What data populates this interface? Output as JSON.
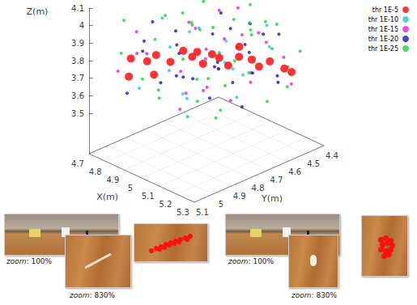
{
  "chart_data": {
    "type": "scatter",
    "xlabel": "X(m)",
    "ylabel": "Y(m)",
    "zlabel": "Z(m)",
    "xlim": [
      4.7,
      5.3
    ],
    "xticks": [
      4.7,
      4.8,
      4.9,
      5,
      5.1,
      5.2,
      5.3
    ],
    "ylim": [
      4.4,
      5.1
    ],
    "yticks": [
      4.4,
      4.5,
      4.6,
      4.7,
      4.8,
      4.9,
      5,
      5.1
    ],
    "zlim": [
      3.5,
      4.1
    ],
    "zticks": [
      3.5,
      3.6,
      3.7,
      3.8,
      3.9,
      4,
      4.1
    ],
    "grid": true,
    "legend": "top-right",
    "series": [
      {
        "name": "thr 1E-5",
        "color": "#ff0000",
        "marker": "circle",
        "values": [
          [
            4.78,
            4.95,
            3.78
          ],
          [
            4.82,
            4.9,
            3.76
          ],
          [
            4.85,
            4.88,
            3.8
          ],
          [
            4.9,
            4.85,
            3.77
          ],
          [
            4.92,
            4.8,
            3.82
          ],
          [
            4.95,
            4.78,
            3.79
          ],
          [
            4.98,
            4.75,
            3.75
          ],
          [
            5.0,
            4.72,
            3.8
          ],
          [
            5.02,
            4.7,
            3.78
          ],
          [
            5.05,
            4.68,
            3.74
          ],
          [
            5.08,
            4.65,
            3.79
          ],
          [
            5.1,
            4.6,
            3.76
          ],
          [
            5.12,
            4.58,
            3.72
          ],
          [
            5.15,
            4.55,
            3.75
          ],
          [
            5.18,
            4.5,
            3.7
          ],
          [
            5.2,
            4.48,
            3.68
          ],
          [
            4.88,
            4.92,
            3.72
          ],
          [
            5.0,
            4.8,
            3.85
          ],
          [
            5.05,
            4.62,
            3.82
          ],
          [
            4.8,
            4.98,
            3.7
          ]
        ]
      },
      {
        "name": "thr 1E-10",
        "color": "#22c8d8",
        "marker": "dot",
        "values": [
          [
            4.85,
            4.7,
            3.85
          ],
          [
            4.95,
            4.9,
            3.9
          ],
          [
            5.05,
            4.6,
            3.65
          ],
          [
            5.15,
            4.75,
            3.8
          ],
          [
            4.9,
            4.55,
            3.75
          ],
          [
            5.1,
            4.95,
            3.7
          ],
          [
            4.8,
            4.8,
            3.95
          ],
          [
            5.0,
            4.65,
            3.72
          ],
          [
            5.2,
            4.6,
            3.88
          ],
          [
            4.88,
            5.0,
            3.68
          ],
          [
            5.08,
            4.5,
            3.9
          ],
          [
            4.97,
            4.85,
            3.62
          ],
          [
            5.12,
            4.7,
            3.6
          ],
          [
            4.82,
            4.62,
            3.82
          ],
          [
            5.03,
            4.98,
            3.84
          ]
        ]
      },
      {
        "name": "thr 1E-15",
        "color": "#e020e0",
        "marker": "dot",
        "values": [
          [
            4.76,
            4.9,
            3.9
          ],
          [
            4.84,
            4.6,
            3.7
          ],
          [
            4.9,
            4.75,
            3.95
          ],
          [
            4.96,
            4.52,
            3.8
          ],
          [
            5.02,
            4.88,
            3.66
          ],
          [
            5.07,
            4.72,
            3.92
          ],
          [
            5.13,
            4.55,
            3.85
          ],
          [
            5.18,
            4.68,
            3.76
          ],
          [
            5.22,
            4.5,
            3.63
          ],
          [
            4.8,
            4.7,
            3.6
          ],
          [
            4.87,
            4.95,
            3.85
          ],
          [
            4.93,
            4.62,
            3.64
          ],
          [
            4.99,
            4.8,
            3.98
          ],
          [
            5.04,
            4.55,
            3.58
          ],
          [
            5.1,
            4.85,
            3.88
          ],
          [
            5.16,
            4.62,
            3.95
          ],
          [
            5.24,
            4.56,
            3.82
          ],
          [
            4.78,
            5.02,
            3.74
          ],
          [
            4.92,
            5.05,
            3.92
          ],
          [
            5.06,
            4.95,
            3.62
          ],
          [
            5.19,
            4.8,
            3.66
          ],
          [
            4.83,
            4.52,
            3.88
          ],
          [
            5.0,
            4.58,
            4.0
          ],
          [
            5.14,
            4.9,
            3.74
          ],
          [
            4.95,
            4.7,
            3.58
          ]
        ]
      },
      {
        "name": "thr 1E-20",
        "color": "#1414c0",
        "marker": "dot",
        "values": [
          [
            4.75,
            4.85,
            3.82
          ],
          [
            4.8,
            4.55,
            3.95
          ],
          [
            4.86,
            4.78,
            3.64
          ],
          [
            4.9,
            5.0,
            3.9
          ],
          [
            4.94,
            4.66,
            3.86
          ],
          [
            4.98,
            4.5,
            3.7
          ],
          [
            5.01,
            4.92,
            3.95
          ],
          [
            5.05,
            4.78,
            3.6
          ],
          [
            5.09,
            4.6,
            3.96
          ],
          [
            5.12,
            4.82,
            3.83
          ],
          [
            5.17,
            4.52,
            3.9
          ],
          [
            5.21,
            4.7,
            3.78
          ],
          [
            5.25,
            4.6,
            3.7
          ],
          [
            4.77,
            4.68,
            3.68
          ],
          [
            4.83,
            4.88,
            3.98
          ],
          [
            4.89,
            4.58,
            3.6
          ],
          [
            4.95,
            4.95,
            3.72
          ],
          [
            5.0,
            4.62,
            3.9
          ],
          [
            5.06,
            4.5,
            3.84
          ],
          [
            5.11,
            4.98,
            3.84
          ],
          [
            5.15,
            4.7,
            3.56
          ],
          [
            5.2,
            4.88,
            3.92
          ],
          [
            4.79,
            4.98,
            3.6
          ],
          [
            4.87,
            4.65,
            4.02
          ],
          [
            4.93,
            4.85,
            3.96
          ],
          [
            5.03,
            4.7,
            4.04
          ],
          [
            5.08,
            4.9,
            3.78
          ],
          [
            5.14,
            4.5,
            3.64
          ],
          [
            5.23,
            4.76,
            3.98
          ],
          [
            4.97,
            4.58,
            3.56
          ]
        ]
      },
      {
        "name": "thr 1E-25",
        "color": "#22d040",
        "marker": "dot",
        "values": [
          [
            4.74,
            4.95,
            3.98
          ],
          [
            4.76,
            4.6,
            3.8
          ],
          [
            4.78,
            4.75,
            4.05
          ],
          [
            4.81,
            4.5,
            3.62
          ],
          [
            4.83,
            5.05,
            3.88
          ],
          [
            4.85,
            4.66,
            3.56
          ],
          [
            4.87,
            4.85,
            4.02
          ],
          [
            4.89,
            4.48,
            3.95
          ],
          [
            4.91,
            4.92,
            3.6
          ],
          [
            4.93,
            4.7,
            4.06
          ],
          [
            4.95,
            4.55,
            3.66
          ],
          [
            4.97,
            5.0,
            4.0
          ],
          [
            4.99,
            4.64,
            3.58
          ],
          [
            5.01,
            4.84,
            4.04
          ],
          [
            5.03,
            4.46,
            3.88
          ],
          [
            5.05,
            4.9,
            3.55
          ],
          [
            5.07,
            4.58,
            4.05
          ],
          [
            5.09,
            4.76,
            3.54
          ],
          [
            5.11,
            4.5,
            3.78
          ],
          [
            5.13,
            5.0,
            3.96
          ],
          [
            5.15,
            4.66,
            4.02
          ],
          [
            5.17,
            4.86,
            3.58
          ],
          [
            5.19,
            4.55,
            3.98
          ],
          [
            5.21,
            4.94,
            3.86
          ],
          [
            5.23,
            4.64,
            3.6
          ],
          [
            5.25,
            4.82,
            4.0
          ],
          [
            5.27,
            4.5,
            3.84
          ],
          [
            4.8,
            4.82,
            3.55
          ],
          [
            4.86,
            4.58,
            4.04
          ],
          [
            4.92,
            5.02,
            3.76
          ],
          [
            4.98,
            4.78,
            3.55
          ],
          [
            5.04,
            4.64,
            3.98
          ],
          [
            5.1,
            4.88,
            4.06
          ],
          [
            5.16,
            4.46,
            3.68
          ],
          [
            5.22,
            4.72,
            4.04
          ],
          [
            4.79,
            4.68,
            3.92
          ],
          [
            4.9,
            4.62,
            3.86
          ],
          [
            5.02,
            4.54,
            3.62
          ],
          [
            5.12,
            4.62,
            3.92
          ],
          [
            5.26,
            4.56,
            3.66
          ]
        ]
      }
    ]
  },
  "photos": [
    {
      "zoom_labels": [
        "zoom: 100%",
        "zoom: 830%"
      ]
    },
    {
      "zoom_labels": [
        "zoom: 100%",
        "zoom: 830%"
      ]
    }
  ]
}
